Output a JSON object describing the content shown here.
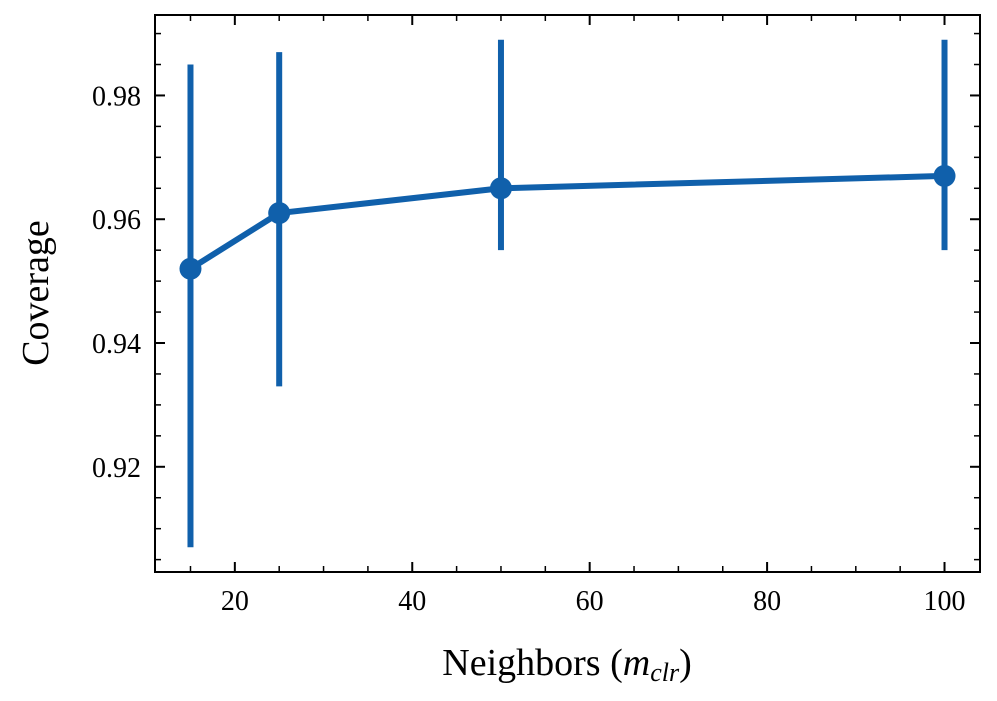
{
  "chart_data": {
    "type": "line",
    "xlabel": "Neighbors (",
    "xlabel_math": "m",
    "xlabel_sub": "clr",
    "xlabel_close": ")",
    "ylabel": "Coverage",
    "xlim": [
      11,
      104
    ],
    "ylim": [
      0.903,
      0.993
    ],
    "xticks": [
      20,
      40,
      60,
      80,
      100
    ],
    "xtick_labels": [
      "20",
      "40",
      "60",
      "80",
      "100"
    ],
    "yticks": [
      0.92,
      0.94,
      0.96,
      0.98
    ],
    "ytick_labels": [
      "0.92",
      "0.94",
      "0.96",
      "0.98"
    ],
    "x_minor_step": 5,
    "y_minor_step": 0.005,
    "grid": false,
    "series": [
      {
        "x": [
          15,
          25,
          50,
          100
        ],
        "y": [
          0.952,
          0.961,
          0.965,
          0.967
        ],
        "err_low": [
          0.907,
          0.933,
          0.955,
          0.955
        ],
        "err_high": [
          0.985,
          0.987,
          0.989,
          0.989
        ],
        "color": "#1060AB"
      }
    ]
  }
}
